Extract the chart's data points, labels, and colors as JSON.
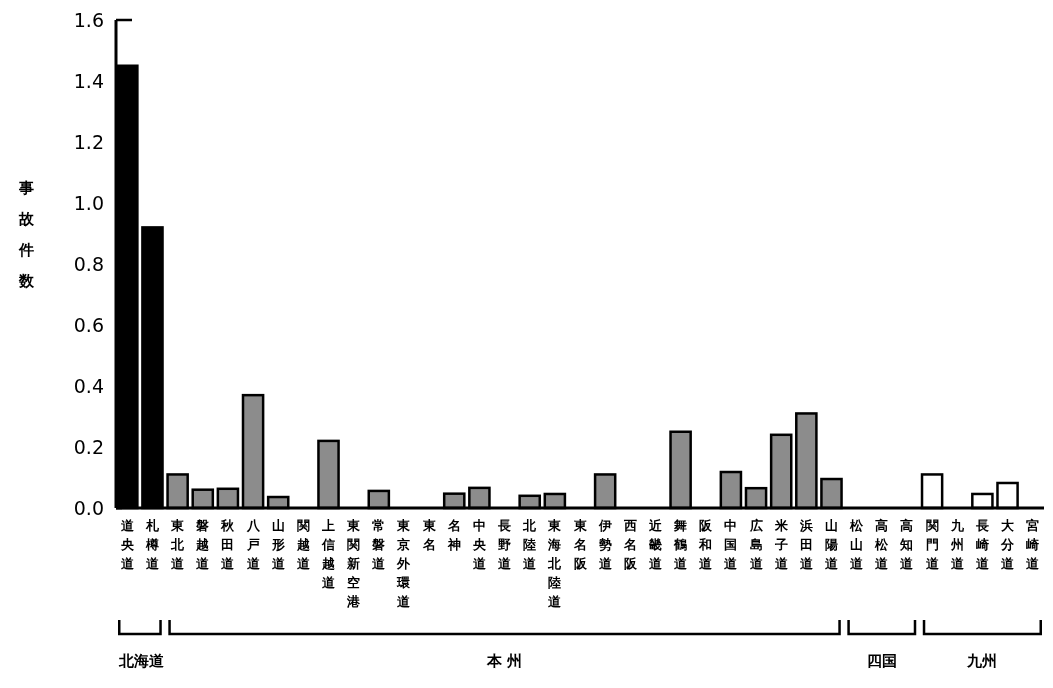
{
  "chart_data": {
    "type": "bar",
    "ylabel": "事故件数",
    "categories": [
      "道央道",
      "札樽道",
      "東北道",
      "磐越道",
      "秋田道",
      "八戸道",
      "山形道",
      "関越道",
      "上信越道",
      "東関新空港",
      "常磐道",
      "東京外環道",
      "東名",
      "名神",
      "中央道",
      "長野道",
      "北陸道",
      "東海北陸道",
      "東名阪",
      "伊勢道",
      "西名阪",
      "近畿道",
      "舞鶴道",
      "阪和道",
      "中国道",
      "広島道",
      "米子道",
      "浜田道",
      "山陽道",
      "松山道",
      "高松道",
      "高知道",
      "関門道",
      "九州道",
      "長崎道",
      "大分道",
      "宮崎道"
    ],
    "values": [
      1.45,
      0.92,
      0.11,
      0.06,
      0.063,
      0.37,
      0.036,
      0,
      0.22,
      0,
      0.056,
      0,
      0,
      0.047,
      0.066,
      0,
      0.04,
      0.046,
      0,
      0.11,
      0,
      0,
      0.25,
      0,
      0.118,
      0.065,
      0.24,
      0.31,
      0.095,
      0,
      0,
      0,
      0.11,
      0,
      0.046,
      0.082,
      0
    ],
    "colors": [
      "#000000",
      "#000000",
      "#8c8c8c",
      "#8c8c8c",
      "#8c8c8c",
      "#8c8c8c",
      "#8c8c8c",
      "#8c8c8c",
      "#8c8c8c",
      "#8c8c8c",
      "#8c8c8c",
      "#8c8c8c",
      "#8c8c8c",
      "#8c8c8c",
      "#8c8c8c",
      "#8c8c8c",
      "#8c8c8c",
      "#8c8c8c",
      "#8c8c8c",
      "#8c8c8c",
      "#8c8c8c",
      "#8c8c8c",
      "#8c8c8c",
      "#8c8c8c",
      "#8c8c8c",
      "#8c8c8c",
      "#8c8c8c",
      "#8c8c8c",
      "#8c8c8c",
      "#ffffff",
      "#ffffff",
      "#ffffff",
      "#ffffff",
      "#ffffff",
      "#ffffff",
      "#ffffff",
      "#ffffff"
    ],
    "ylim": [
      0,
      1.6
    ],
    "yticks": [
      {
        "value": 0,
        "label": "0.0"
      },
      0.2,
      0.4,
      0.6,
      0.8,
      {
        "value": 1,
        "label": "1.0"
      },
      1.2,
      1.4,
      1.6
    ],
    "grid": false,
    "annotations": [
      "北海道",
      "本 州",
      "四国",
      "九州"
    ]
  }
}
